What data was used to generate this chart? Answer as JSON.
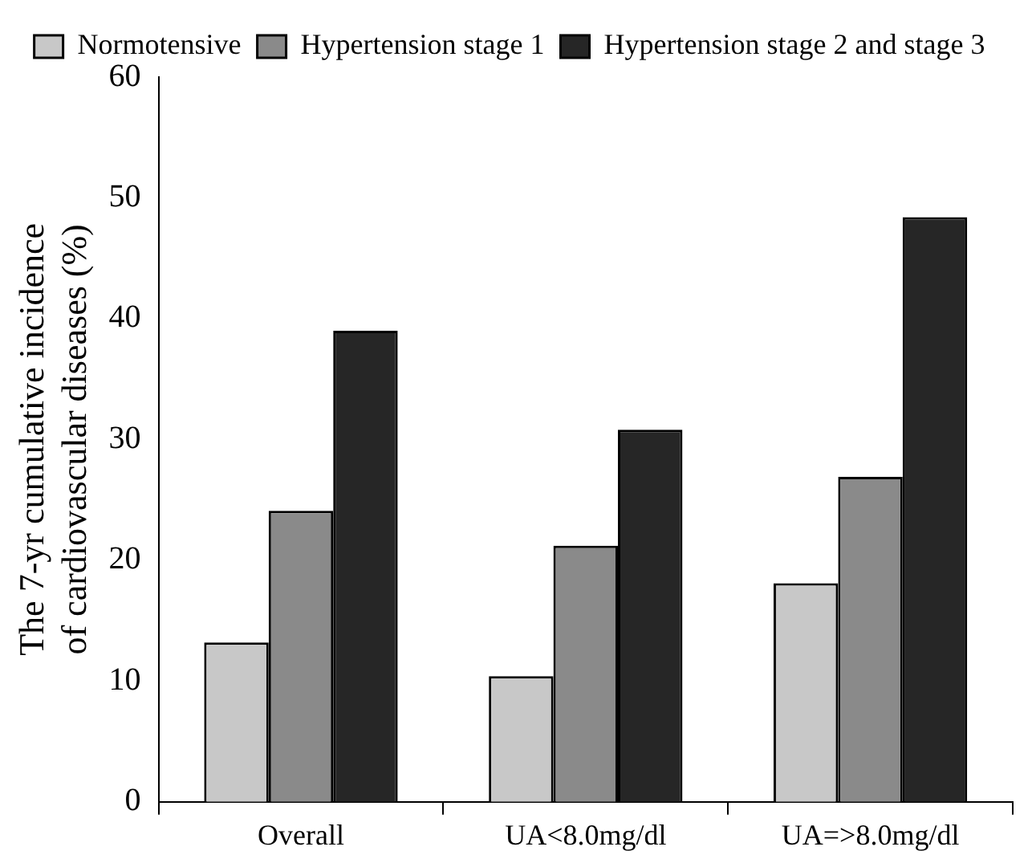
{
  "chart_data": {
    "type": "bar",
    "ylabel": "The 7-yr cumulative incidence of cardiovascular diseases (%)",
    "categories": [
      "Overall",
      "UA<8.0mg/dl",
      "UA=>8.0mg/dl"
    ],
    "series": [
      {
        "name": "Normotensive",
        "color": "#c8c8c8",
        "values": [
          13.2,
          10.4,
          18.1
        ]
      },
      {
        "name": "Hypertension stage 1",
        "color": "#8a8a8a",
        "values": [
          24.1,
          21.2,
          26.9
        ]
      },
      {
        "name": "Hypertension stage 2 and stage 3",
        "color": "#262626",
        "values": [
          39.0,
          30.8,
          48.4
        ]
      }
    ],
    "ylim": [
      0,
      60
    ],
    "yticks": [
      0,
      10,
      20,
      30,
      40,
      50,
      60
    ],
    "grid": false,
    "legend": "top"
  }
}
